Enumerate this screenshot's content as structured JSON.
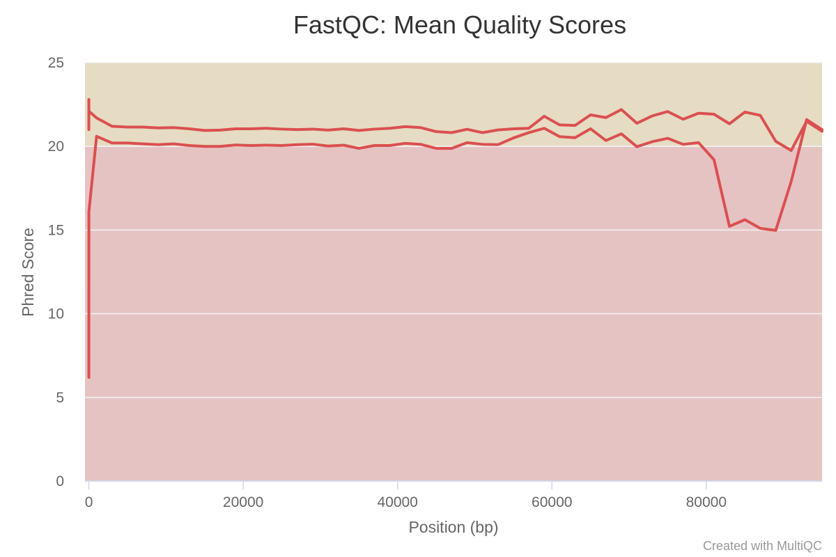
{
  "chart_data": {
    "type": "line",
    "title": "FastQC: Mean Quality Scores",
    "xlabel": "Position (bp)",
    "ylabel": "Phred Score",
    "xlim": [
      -500,
      95000
    ],
    "ylim": [
      0,
      25
    ],
    "x_ticks": [
      0,
      20000,
      40000,
      60000,
      80000
    ],
    "x_tick_labels": [
      "0",
      "20000",
      "40000",
      "60000",
      "80000"
    ],
    "y_ticks": [
      0,
      5,
      10,
      15,
      20,
      25
    ],
    "y_tick_labels": [
      "0",
      "5",
      "10",
      "15",
      "20",
      "25"
    ],
    "grid": true,
    "legend": "none",
    "bands": [
      {
        "from": 0,
        "to": 20,
        "color": "#e6c3c3"
      },
      {
        "from": 20,
        "to": 25,
        "color": "#e6dcc3"
      }
    ],
    "series": [
      {
        "color": "#da5050",
        "x": [
          1,
          2,
          3,
          4,
          5,
          6,
          7,
          8,
          9,
          10,
          1000,
          3000,
          5000,
          7000,
          9000,
          11000,
          13000,
          15000,
          17000,
          19000,
          21000,
          23000,
          25000,
          27000,
          29000,
          31000,
          33000,
          35000,
          37000,
          39000,
          41000,
          43000,
          45000,
          47000,
          49000,
          51000,
          53000,
          55000,
          57000,
          59000,
          61000,
          63000,
          65000,
          67000,
          69000,
          71000,
          73000,
          75000,
          77000,
          79000,
          81000,
          83000,
          85000,
          87000,
          89000,
          91000,
          93000,
          95000
        ],
        "y": [
          21.0,
          22.3,
          22.8,
          22.7,
          22.6,
          22.5,
          22.4,
          22.3,
          22.2,
          22.1,
          21.7,
          21.2,
          21.15,
          21.15,
          21.1,
          21.12,
          21.05,
          20.95,
          20.97,
          21.05,
          21.05,
          21.08,
          21.03,
          21.0,
          21.03,
          20.97,
          21.05,
          20.95,
          21.03,
          21.08,
          21.18,
          21.12,
          20.88,
          20.82,
          21.02,
          20.82,
          20.98,
          21.05,
          21.08,
          21.8,
          21.28,
          21.25,
          21.88,
          21.72,
          22.2,
          21.38,
          21.82,
          22.08,
          21.62,
          21.98,
          21.92,
          21.35,
          22.05,
          21.85,
          20.3,
          19.75,
          21.5,
          20.9
        ]
      },
      {
        "color": "#da5050",
        "x": [
          1,
          2,
          3,
          4,
          5,
          6,
          7,
          8,
          9,
          10,
          1000,
          3000,
          5000,
          7000,
          9000,
          11000,
          13000,
          15000,
          17000,
          19000,
          21000,
          23000,
          25000,
          27000,
          29000,
          31000,
          33000,
          35000,
          37000,
          39000,
          41000,
          43000,
          45000,
          47000,
          49000,
          51000,
          53000,
          55000,
          57000,
          59000,
          61000,
          63000,
          65000,
          67000,
          69000,
          71000,
          73000,
          75000,
          77000,
          79000,
          81000,
          83000,
          85000,
          87000,
          89000,
          91000,
          93000,
          95000
        ],
        "y": [
          6.2,
          9.0,
          11.5,
          13.5,
          14.2,
          14.8,
          15.2,
          15.6,
          15.9,
          16.1,
          20.6,
          20.2,
          20.2,
          20.15,
          20.1,
          20.15,
          20.05,
          20.0,
          20.0,
          20.08,
          20.05,
          20.07,
          20.05,
          20.1,
          20.13,
          20.02,
          20.07,
          19.88,
          20.05,
          20.05,
          20.18,
          20.12,
          19.88,
          19.88,
          20.22,
          20.12,
          20.1,
          20.5,
          20.82,
          21.08,
          20.58,
          20.52,
          21.05,
          20.35,
          20.75,
          19.98,
          20.28,
          20.48,
          20.12,
          20.22,
          19.2,
          15.22,
          15.62,
          15.1,
          14.98,
          17.9,
          21.6,
          21.0
        ]
      }
    ]
  },
  "credit_text": "Created with MultiQC"
}
